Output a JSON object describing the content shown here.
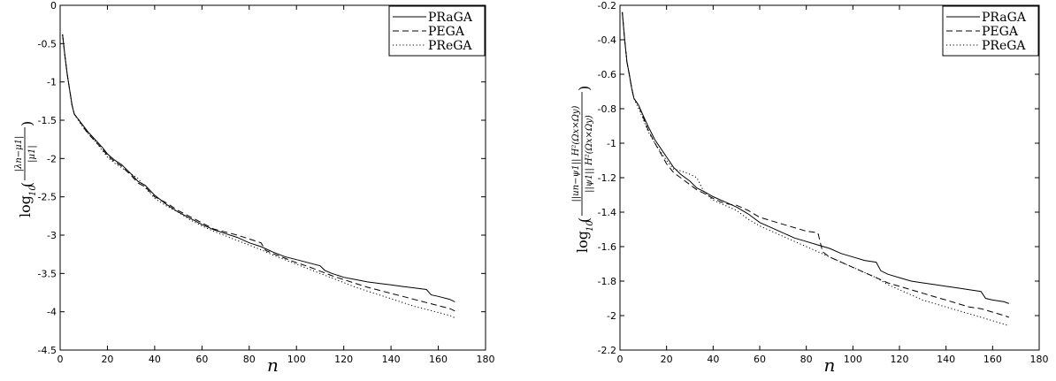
{
  "chart_data": [
    {
      "type": "line",
      "title": "",
      "xlabel": "n",
      "ylabel": "log10((|λn − μ1|)/(|μ1|))",
      "ylabel_parts": {
        "log": "log",
        "base": "10",
        "num": "|λn−μ1|",
        "den": "|μ1|"
      },
      "xlim": [
        0,
        180
      ],
      "ylim": [
        -4.5,
        0
      ],
      "xticks": [
        0,
        20,
        40,
        60,
        80,
        100,
        120,
        140,
        160,
        180
      ],
      "yticks": [
        -4.5,
        -4,
        -3.5,
        -3,
        -2.5,
        -2,
        -1.5,
        -1,
        -0.5,
        0
      ],
      "ytick_labels": [
        "-4.5",
        "-4",
        "-3.5",
        "-3",
        "-2.5",
        "-2",
        "-1.5",
        "-1",
        "-0.5",
        "0"
      ],
      "grid": false,
      "legend_position": "top-right",
      "series": [
        {
          "name": "PRaGA",
          "style": "solid",
          "x": [
            1,
            2,
            3,
            4,
            5,
            6,
            8,
            10,
            12,
            15,
            18,
            20,
            23,
            26,
            30,
            33,
            36,
            40,
            45,
            50,
            55,
            60,
            65,
            70,
            75,
            80,
            85,
            90,
            95,
            100,
            105,
            110,
            112,
            115,
            120,
            125,
            130,
            135,
            140,
            145,
            150,
            155,
            157,
            160,
            165,
            167
          ],
          "y": [
            -0.38,
            -0.65,
            -0.9,
            -1.1,
            -1.3,
            -1.42,
            -1.5,
            -1.58,
            -1.66,
            -1.76,
            -1.86,
            -1.94,
            -2.02,
            -2.08,
            -2.2,
            -2.3,
            -2.35,
            -2.48,
            -2.6,
            -2.7,
            -2.78,
            -2.86,
            -2.93,
            -2.98,
            -3.03,
            -3.1,
            -3.15,
            -3.22,
            -3.28,
            -3.32,
            -3.36,
            -3.4,
            -3.46,
            -3.5,
            -3.55,
            -3.58,
            -3.61,
            -3.63,
            -3.65,
            -3.67,
            -3.69,
            -3.71,
            -3.78,
            -3.8,
            -3.84,
            -3.87
          ]
        },
        {
          "name": "PEGA",
          "style": "dashed",
          "x": [
            1,
            2,
            3,
            4,
            5,
            6,
            8,
            10,
            12,
            15,
            18,
            20,
            23,
            26,
            30,
            33,
            36,
            40,
            45,
            50,
            55,
            60,
            65,
            70,
            75,
            80,
            85,
            87,
            90,
            95,
            100,
            105,
            110,
            115,
            120,
            125,
            130,
            135,
            140,
            145,
            150,
            155,
            160,
            165,
            167
          ],
          "y": [
            -0.38,
            -0.65,
            -0.9,
            -1.1,
            -1.3,
            -1.42,
            -1.5,
            -1.6,
            -1.68,
            -1.78,
            -1.88,
            -1.96,
            -2.04,
            -2.1,
            -2.22,
            -2.32,
            -2.37,
            -2.5,
            -2.58,
            -2.68,
            -2.76,
            -2.84,
            -2.92,
            -2.96,
            -3.0,
            -3.05,
            -3.1,
            -3.2,
            -3.24,
            -3.3,
            -3.36,
            -3.41,
            -3.47,
            -3.53,
            -3.58,
            -3.63,
            -3.68,
            -3.72,
            -3.76,
            -3.8,
            -3.84,
            -3.88,
            -3.92,
            -3.96,
            -3.99
          ]
        },
        {
          "name": "PReGA",
          "style": "dotted",
          "x": [
            1,
            2,
            3,
            4,
            5,
            6,
            8,
            10,
            12,
            15,
            18,
            20,
            23,
            26,
            30,
            33,
            36,
            40,
            45,
            50,
            55,
            60,
            65,
            70,
            75,
            80,
            85,
            90,
            95,
            100,
            105,
            110,
            115,
            120,
            125,
            130,
            135,
            140,
            145,
            150,
            155,
            160,
            165,
            167
          ],
          "y": [
            -0.38,
            -0.65,
            -0.9,
            -1.1,
            -1.3,
            -1.42,
            -1.52,
            -1.6,
            -1.68,
            -1.78,
            -1.9,
            -1.98,
            -2.06,
            -2.12,
            -2.2,
            -2.26,
            -2.38,
            -2.52,
            -2.62,
            -2.7,
            -2.8,
            -2.88,
            -2.95,
            -3.01,
            -3.07,
            -3.13,
            -3.19,
            -3.26,
            -3.32,
            -3.38,
            -3.44,
            -3.5,
            -3.56,
            -3.62,
            -3.68,
            -3.73,
            -3.78,
            -3.83,
            -3.88,
            -3.93,
            -3.97,
            -4.01,
            -4.05,
            -4.08
          ]
        }
      ]
    },
    {
      "type": "line",
      "title": "",
      "xlabel": "n",
      "ylabel": "log10((||un − ψ1||H2(Ωx×Ωy))/(||ψ1||H2(Ωx×Ωy)))",
      "ylabel_parts": {
        "log": "log",
        "base": "10",
        "num": "||un−ψ1||",
        "num_sub": "H²(Ωx×Ωy)",
        "den": "||ψ1||",
        "den_sub": "H²(Ωx×Ωy)"
      },
      "xlim": [
        0,
        180
      ],
      "ylim": [
        -2.2,
        -0.2
      ],
      "xticks": [
        0,
        20,
        40,
        60,
        80,
        100,
        120,
        140,
        160,
        180
      ],
      "yticks": [
        -2.2,
        -2,
        -1.8,
        -1.6,
        -1.4,
        -1.2,
        -1,
        -0.8,
        -0.6,
        -0.4,
        -0.2
      ],
      "ytick_labels": [
        "-2.2",
        "-2",
        "-1.8",
        "-1.6",
        "-1.4",
        "-1.2",
        "-1",
        "-0.8",
        "-0.6",
        "-0.4",
        "-0.2"
      ],
      "grid": false,
      "legend_position": "top-right",
      "series": [
        {
          "name": "PRaGA",
          "style": "solid",
          "x": [
            1,
            2,
            3,
            4,
            5,
            6,
            8,
            10,
            12,
            15,
            18,
            20,
            23,
            26,
            30,
            33,
            36,
            40,
            45,
            50,
            55,
            60,
            65,
            70,
            75,
            80,
            85,
            90,
            95,
            100,
            105,
            110,
            112,
            115,
            120,
            125,
            130,
            135,
            140,
            145,
            150,
            155,
            157,
            160,
            165,
            167
          ],
          "y": [
            -0.24,
            -0.4,
            -0.53,
            -0.6,
            -0.68,
            -0.74,
            -0.78,
            -0.84,
            -0.9,
            -0.98,
            -1.04,
            -1.08,
            -1.14,
            -1.18,
            -1.22,
            -1.26,
            -1.28,
            -1.31,
            -1.34,
            -1.37,
            -1.41,
            -1.46,
            -1.49,
            -1.52,
            -1.55,
            -1.57,
            -1.59,
            -1.61,
            -1.64,
            -1.66,
            -1.68,
            -1.69,
            -1.74,
            -1.76,
            -1.78,
            -1.8,
            -1.81,
            -1.82,
            -1.83,
            -1.84,
            -1.85,
            -1.86,
            -1.9,
            -1.91,
            -1.92,
            -1.93
          ]
        },
        {
          "name": "PEGA",
          "style": "dashed",
          "x": [
            1,
            2,
            3,
            4,
            5,
            6,
            8,
            10,
            12,
            15,
            18,
            20,
            23,
            26,
            30,
            33,
            36,
            40,
            45,
            50,
            55,
            60,
            65,
            70,
            75,
            80,
            85,
            87,
            90,
            95,
            100,
            105,
            110,
            115,
            120,
            125,
            130,
            135,
            140,
            145,
            150,
            155,
            160,
            165,
            167
          ],
          "y": [
            -0.24,
            -0.4,
            -0.53,
            -0.6,
            -0.68,
            -0.74,
            -0.78,
            -0.85,
            -0.92,
            -1.0,
            -1.07,
            -1.12,
            -1.17,
            -1.2,
            -1.24,
            -1.27,
            -1.29,
            -1.32,
            -1.35,
            -1.36,
            -1.39,
            -1.43,
            -1.45,
            -1.47,
            -1.49,
            -1.51,
            -1.52,
            -1.63,
            -1.66,
            -1.69,
            -1.72,
            -1.75,
            -1.78,
            -1.81,
            -1.83,
            -1.85,
            -1.87,
            -1.89,
            -1.91,
            -1.93,
            -1.95,
            -1.96,
            -1.98,
            -2.0,
            -2.01
          ]
        },
        {
          "name": "PReGA",
          "style": "dotted",
          "x": [
            1,
            2,
            3,
            4,
            5,
            6,
            8,
            10,
            12,
            15,
            18,
            20,
            23,
            26,
            30,
            33,
            36,
            40,
            45,
            50,
            55,
            60,
            65,
            70,
            75,
            80,
            85,
            90,
            95,
            100,
            105,
            110,
            115,
            120,
            125,
            130,
            135,
            140,
            145,
            150,
            155,
            160,
            165,
            167
          ],
          "y": [
            -0.24,
            -0.4,
            -0.53,
            -0.6,
            -0.68,
            -0.74,
            -0.8,
            -0.86,
            -0.93,
            -1.0,
            -1.06,
            -1.1,
            -1.15,
            -1.16,
            -1.18,
            -1.2,
            -1.28,
            -1.33,
            -1.36,
            -1.39,
            -1.44,
            -1.48,
            -1.51,
            -1.54,
            -1.57,
            -1.6,
            -1.63,
            -1.66,
            -1.69,
            -1.72,
            -1.75,
            -1.78,
            -1.82,
            -1.85,
            -1.88,
            -1.91,
            -1.93,
            -1.95,
            -1.97,
            -1.99,
            -2.01,
            -2.03,
            -2.05,
            -2.06
          ]
        }
      ]
    }
  ]
}
